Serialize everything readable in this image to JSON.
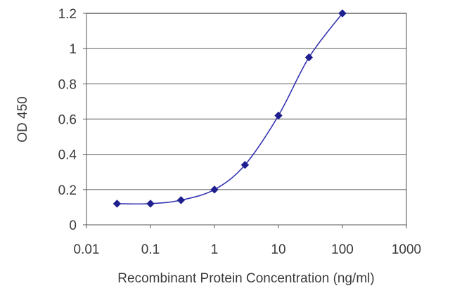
{
  "chart_data": {
    "type": "line",
    "title": "",
    "xlabel": "Recombinant Protein Concentration (ng/ml)",
    "ylabel": "OD 450",
    "x_scale": "log",
    "xlim": [
      0.01,
      1000
    ],
    "ylim": [
      0,
      1.2
    ],
    "x_ticks": [
      "0.01",
      "0.1",
      "1",
      "10",
      "100",
      "1000"
    ],
    "y_ticks": [
      "0",
      "0.2",
      "0.4",
      "0.6",
      "0.8",
      "1",
      "1.2"
    ],
    "grid": "horizontal",
    "legend": "none",
    "series": [
      {
        "x": [
          0.03,
          0.1,
          0.3,
          1,
          3,
          10,
          30,
          100
        ],
        "y": [
          0.12,
          0.12,
          0.14,
          0.2,
          0.34,
          0.62,
          0.95,
          1.2
        ],
        "color": "#1f1f8f",
        "marker": "diamond"
      }
    ]
  }
}
